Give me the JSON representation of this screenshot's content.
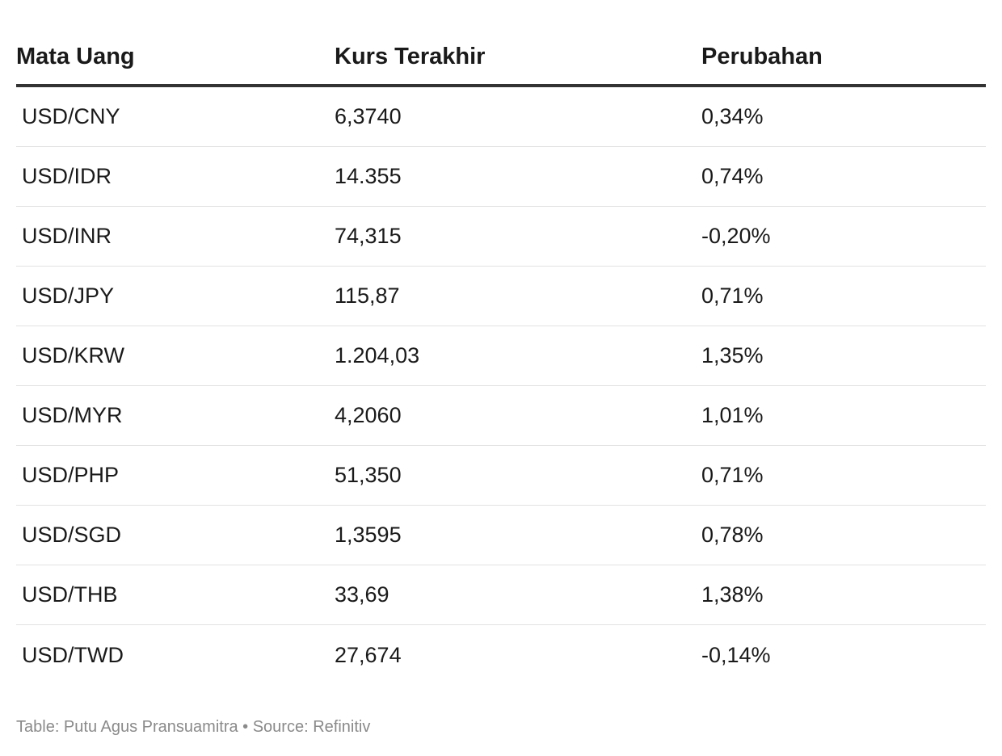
{
  "table": {
    "headers": [
      "Mata Uang",
      "Kurs Terakhir",
      "Perubahan"
    ],
    "rows": [
      [
        "USD/CNY",
        "6,3740",
        "0,34%"
      ],
      [
        "USD/IDR",
        "14.355",
        "0,74%"
      ],
      [
        "USD/INR",
        "74,315",
        "-0,20%"
      ],
      [
        "USD/JPY",
        "115,87",
        "0,71%"
      ],
      [
        "USD/KRW",
        "1.204,03",
        "1,35%"
      ],
      [
        "USD/MYR",
        "4,2060",
        "1,01%"
      ],
      [
        "USD/PHP",
        "51,350",
        "0,71%"
      ],
      [
        "USD/SGD",
        "1,3595",
        "0,78%"
      ],
      [
        "USD/THB",
        "33,69",
        "1,38%"
      ],
      [
        "USD/TWD",
        "27,674",
        "-0,14%"
      ]
    ]
  },
  "footer": {
    "text": "Table: Putu Agus Pransuamitra • Source: Refinitiv"
  },
  "colors": {
    "text": "#1a1a1a",
    "header_rule": "#333333",
    "row_divider": "#e2e2e2",
    "footer_text": "#8a8a8a"
  }
}
